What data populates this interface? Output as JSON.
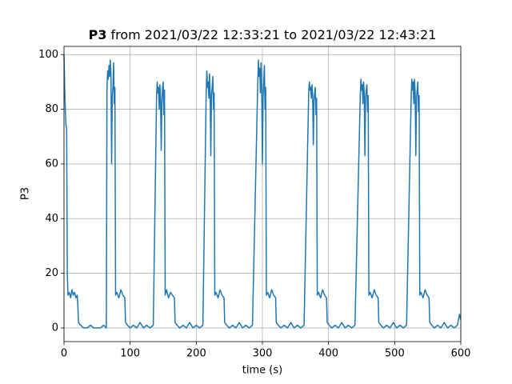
{
  "chart_data": {
    "type": "line",
    "title_bold": "P3",
    "title": "from 2021/03/22 12:33:21 to 2021/03/22 12:43:21",
    "xlabel": "time (s)",
    "ylabel": "P3",
    "xlim": [
      0,
      600
    ],
    "xticks": [
      0,
      100,
      200,
      300,
      400,
      500,
      600
    ],
    "ylim": [
      -5,
      103
    ],
    "yticks": [
      0,
      20,
      40,
      60,
      80,
      100
    ],
    "grid": true,
    "series": [
      {
        "name": "P3",
        "color": "#1f77b4",
        "x": [
          0,
          1,
          2,
          3,
          4,
          5,
          6,
          8,
          10,
          12,
          14,
          16,
          18,
          20,
          21,
          22,
          25,
          30,
          35,
          40,
          45,
          50,
          55,
          60,
          64,
          65,
          66,
          67,
          68,
          69,
          70,
          71,
          72,
          73,
          74,
          75,
          76,
          77,
          78,
          80,
          83,
          86,
          89,
          92,
          93,
          96,
          100,
          105,
          110,
          115,
          120,
          125,
          130,
          135,
          140,
          141,
          142,
          143,
          144,
          145,
          146,
          147,
          148,
          149,
          150,
          151,
          152,
          153,
          155,
          158,
          161,
          164,
          167,
          168,
          171,
          175,
          180,
          185,
          190,
          195,
          200,
          205,
          210,
          215,
          216,
          217,
          218,
          219,
          220,
          221,
          222,
          223,
          224,
          225,
          226,
          227,
          228,
          230,
          233,
          236,
          239,
          242,
          243,
          246,
          250,
          255,
          260,
          265,
          270,
          275,
          280,
          285,
          293,
          294,
          295,
          296,
          297,
          298,
          299,
          300,
          301,
          302,
          303,
          304,
          305,
          306,
          308,
          311,
          314,
          317,
          320,
          321,
          324,
          328,
          333,
          338,
          343,
          348,
          353,
          358,
          363,
          370,
          371,
          372,
          373,
          374,
          375,
          376,
          377,
          378,
          379,
          380,
          381,
          382,
          383,
          385,
          388,
          391,
          394,
          397,
          398,
          401,
          405,
          410,
          415,
          420,
          425,
          430,
          435,
          440,
          448,
          449,
          450,
          451,
          452,
          453,
          454,
          455,
          456,
          457,
          458,
          459,
          460,
          461,
          463,
          466,
          469,
          472,
          475,
          476,
          479,
          483,
          488,
          493,
          498,
          503,
          508,
          513,
          518,
          525,
          526,
          527,
          528,
          529,
          530,
          531,
          532,
          533,
          534,
          535,
          536,
          537,
          538,
          540,
          543,
          546,
          549,
          552,
          553,
          556,
          560,
          565,
          570,
          575,
          580,
          585,
          590,
          595,
          598,
          600
        ],
        "values": [
          100,
          88,
          80,
          74,
          73,
          20,
          12,
          13,
          11,
          14,
          12,
          13,
          11,
          12,
          8,
          2,
          1,
          0,
          0,
          1,
          0,
          0,
          0,
          1,
          0,
          88,
          94,
          91,
          96,
          92,
          98,
          93,
          60,
          85,
          88,
          97,
          82,
          88,
          12,
          13,
          11,
          14,
          12,
          11,
          2,
          1,
          0,
          1,
          0,
          2,
          0,
          1,
          0,
          1,
          85,
          90,
          86,
          88,
          80,
          89,
          84,
          65,
          82,
          88,
          90,
          78,
          87,
          12,
          14,
          11,
          13,
          12,
          11,
          2,
          1,
          0,
          1,
          0,
          2,
          0,
          1,
          0,
          1,
          86,
          94,
          88,
          90,
          84,
          93,
          86,
          63,
          85,
          88,
          92,
          80,
          86,
          12,
          13,
          11,
          14,
          12,
          11,
          2,
          1,
          0,
          1,
          0,
          2,
          0,
          1,
          0,
          1,
          90,
          98,
          92,
          95,
          86,
          97,
          88,
          60,
          84,
          90,
          96,
          80,
          88,
          12,
          13,
          11,
          14,
          12,
          11,
          2,
          1,
          0,
          1,
          0,
          2,
          0,
          1,
          0,
          1,
          86,
          90,
          87,
          88,
          84,
          89,
          85,
          67,
          83,
          86,
          88,
          78,
          84,
          12,
          13,
          11,
          14,
          12,
          11,
          2,
          1,
          0,
          1,
          0,
          2,
          0,
          1,
          0,
          1,
          85,
          91,
          87,
          89,
          82,
          90,
          86,
          63,
          84,
          87,
          89,
          79,
          85,
          12,
          13,
          11,
          14,
          12,
          11,
          2,
          1,
          0,
          1,
          0,
          2,
          0,
          1,
          0,
          1,
          85,
          91,
          87,
          90,
          82,
          91,
          86,
          63,
          84,
          87,
          90,
          79,
          85,
          12,
          13,
          11,
          14,
          12,
          11,
          2,
          1,
          0,
          1,
          0,
          2,
          0,
          1,
          0,
          1,
          5,
          3
        ]
      }
    ]
  }
}
